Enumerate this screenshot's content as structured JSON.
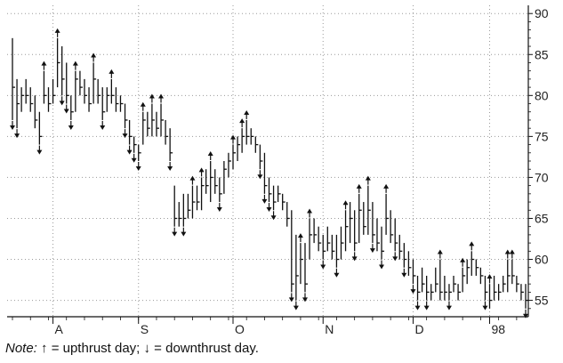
{
  "chart_data": {
    "type": "bar",
    "subtype": "OHLC price bars with thrust-day arrows",
    "title": "",
    "xlabel": "",
    "ylabel": "",
    "y_axis_position": "right",
    "ylim": [
      53,
      91
    ],
    "y_ticks": [
      55,
      60,
      65,
      70,
      75,
      80,
      85,
      90
    ],
    "x_ticks": [
      "A",
      "S",
      "O",
      "N",
      "D",
      "98"
    ],
    "grid": "dotted",
    "legend": "none",
    "bar_color": "#111111",
    "grid_color": "#9a9a9a",
    "note_label": "Note:",
    "note_text": "↑ = upthrust day; ↓ = downthrust day.",
    "bars": [
      {
        "h": 87,
        "l": 77,
        "c": 81,
        "t": "down"
      },
      {
        "h": 82,
        "l": 76,
        "c": 79,
        "t": "down"
      },
      {
        "h": 81,
        "l": 78,
        "c": 80
      },
      {
        "h": 82,
        "l": 79,
        "c": 80
      },
      {
        "h": 81,
        "l": 78,
        "c": 79
      },
      {
        "h": 80,
        "l": 76,
        "c": 77
      },
      {
        "h": 78,
        "l": 74,
        "c": 75,
        "t": "down"
      },
      {
        "h": 83,
        "l": 79,
        "c": 80,
        "t": "up"
      },
      {
        "h": 81,
        "l": 78,
        "c": 79
      },
      {
        "h": 82,
        "l": 79,
        "c": 80
      },
      {
        "h": 87,
        "l": 81,
        "c": 84,
        "t": "up"
      },
      {
        "h": 86,
        "l": 80,
        "c": 82,
        "t": "down"
      },
      {
        "h": 84,
        "l": 79,
        "c": 80,
        "t": "down"
      },
      {
        "h": 80,
        "l": 77,
        "c": 78,
        "t": "down"
      },
      {
        "h": 83,
        "l": 78,
        "c": 82,
        "t": "up"
      },
      {
        "h": 83,
        "l": 80,
        "c": 81
      },
      {
        "h": 82,
        "l": 79,
        "c": 80
      },
      {
        "h": 81,
        "l": 78,
        "c": 79
      },
      {
        "h": 84,
        "l": 79,
        "c": 82,
        "t": "up"
      },
      {
        "h": 82,
        "l": 79,
        "c": 80
      },
      {
        "h": 81,
        "l": 77,
        "c": 78,
        "t": "down"
      },
      {
        "h": 81,
        "l": 78,
        "c": 80
      },
      {
        "h": 82,
        "l": 79,
        "c": 80,
        "t": "up"
      },
      {
        "h": 81,
        "l": 78,
        "c": 79
      },
      {
        "h": 80,
        "l": 78,
        "c": 79
      },
      {
        "h": 79,
        "l": 76,
        "c": 77,
        "t": "down"
      },
      {
        "h": 77,
        "l": 74,
        "c": 75,
        "t": "down"
      },
      {
        "h": 75,
        "l": 73,
        "c": 74,
        "t": "down"
      },
      {
        "h": 74,
        "l": 72,
        "c": 73,
        "t": "down"
      },
      {
        "h": 78,
        "l": 74,
        "c": 77,
        "t": "up"
      },
      {
        "h": 78,
        "l": 75,
        "c": 76
      },
      {
        "h": 79,
        "l": 75,
        "c": 77,
        "t": "up"
      },
      {
        "h": 78,
        "l": 75,
        "c": 76
      },
      {
        "h": 79,
        "l": 75,
        "c": 77,
        "t": "up"
      },
      {
        "h": 77,
        "l": 74,
        "c": 75
      },
      {
        "h": 76,
        "l": 72,
        "c": 73,
        "t": "down"
      },
      {
        "h": 69,
        "l": 64,
        "c": 65,
        "t": "down"
      },
      {
        "h": 67,
        "l": 64,
        "c": 65
      },
      {
        "h": 68,
        "l": 64,
        "c": 65,
        "t": "down"
      },
      {
        "h": 68,
        "l": 65,
        "c": 66
      },
      {
        "h": 69,
        "l": 65,
        "c": 67,
        "t": "up"
      },
      {
        "h": 69,
        "l": 66,
        "c": 67
      },
      {
        "h": 70,
        "l": 66,
        "c": 69,
        "t": "up"
      },
      {
        "h": 71,
        "l": 68,
        "c": 69
      },
      {
        "h": 72,
        "l": 67,
        "c": 70,
        "t": "up"
      },
      {
        "h": 71,
        "l": 68,
        "c": 69
      },
      {
        "h": 70,
        "l": 67,
        "c": 68,
        "t": "down"
      },
      {
        "h": 72,
        "l": 68,
        "c": 71
      },
      {
        "h": 73,
        "l": 70,
        "c": 72
      },
      {
        "h": 74,
        "l": 71,
        "c": 73,
        "t": "up"
      },
      {
        "h": 75,
        "l": 72,
        "c": 74
      },
      {
        "h": 76,
        "l": 73,
        "c": 75,
        "t": "up"
      },
      {
        "h": 77,
        "l": 74,
        "c": 75,
        "t": "up"
      },
      {
        "h": 76,
        "l": 74,
        "c": 75
      },
      {
        "h": 75,
        "l": 73,
        "c": 74
      },
      {
        "h": 74,
        "l": 71,
        "c": 72,
        "t": "down"
      },
      {
        "h": 73,
        "l": 68,
        "c": 69,
        "t": "down"
      },
      {
        "h": 70,
        "l": 67,
        "c": 68,
        "t": "down"
      },
      {
        "h": 69,
        "l": 66,
        "c": 67,
        "t": "down"
      },
      {
        "h": 69,
        "l": 67,
        "c": 68
      },
      {
        "h": 68,
        "l": 66,
        "c": 67
      },
      {
        "h": 67,
        "l": 64,
        "c": 65
      },
      {
        "h": 66,
        "l": 56,
        "c": 57,
        "t": "down"
      },
      {
        "h": 63,
        "l": 55,
        "c": 58,
        "t": "down"
      },
      {
        "h": 62,
        "l": 57,
        "c": 60,
        "t": "up"
      },
      {
        "h": 62,
        "l": 56,
        "c": 57,
        "t": "down"
      },
      {
        "h": 65,
        "l": 60,
        "c": 63,
        "t": "up"
      },
      {
        "h": 65,
        "l": 62,
        "c": 63
      },
      {
        "h": 64,
        "l": 61,
        "c": 62
      },
      {
        "h": 63,
        "l": 60,
        "c": 61,
        "t": "down"
      },
      {
        "h": 64,
        "l": 61,
        "c": 62
      },
      {
        "h": 63,
        "l": 60,
        "c": 61
      },
      {
        "h": 63,
        "l": 59,
        "c": 60,
        "t": "down"
      },
      {
        "h": 64,
        "l": 60,
        "c": 62
      },
      {
        "h": 66,
        "l": 61,
        "c": 64,
        "t": "up"
      },
      {
        "h": 67,
        "l": 62,
        "c": 65
      },
      {
        "h": 66,
        "l": 61,
        "c": 62,
        "t": "down"
      },
      {
        "h": 68,
        "l": 62,
        "c": 66,
        "t": "up"
      },
      {
        "h": 67,
        "l": 63,
        "c": 64
      },
      {
        "h": 69,
        "l": 63,
        "c": 66,
        "t": "up"
      },
      {
        "h": 67,
        "l": 62,
        "c": 63,
        "t": "down"
      },
      {
        "h": 65,
        "l": 61,
        "c": 62
      },
      {
        "h": 64,
        "l": 60,
        "c": 61,
        "t": "down"
      },
      {
        "h": 68,
        "l": 63,
        "c": 65,
        "t": "up"
      },
      {
        "h": 66,
        "l": 62,
        "c": 63
      },
      {
        "h": 65,
        "l": 61,
        "c": 62,
        "t": "down"
      },
      {
        "h": 63,
        "l": 60,
        "c": 61
      },
      {
        "h": 62,
        "l": 59,
        "c": 60,
        "t": "down"
      },
      {
        "h": 61,
        "l": 58,
        "c": 59
      },
      {
        "h": 60,
        "l": 57,
        "c": 58,
        "t": "down"
      },
      {
        "h": 58,
        "l": 55,
        "c": 56,
        "t": "down"
      },
      {
        "h": 59,
        "l": 56,
        "c": 57
      },
      {
        "h": 58,
        "l": 55,
        "c": 56,
        "t": "down"
      },
      {
        "h": 57,
        "l": 55,
        "c": 56
      },
      {
        "h": 59,
        "l": 56,
        "c": 57
      },
      {
        "h": 60,
        "l": 55,
        "c": 56,
        "t": "up"
      },
      {
        "h": 58,
        "l": 55,
        "c": 56
      },
      {
        "h": 57,
        "l": 55,
        "c": 56,
        "t": "down"
      },
      {
        "h": 58,
        "l": 56,
        "c": 57
      },
      {
        "h": 57,
        "l": 55,
        "c": 56
      },
      {
        "h": 59,
        "l": 56,
        "c": 58,
        "t": "up"
      },
      {
        "h": 60,
        "l": 57,
        "c": 59
      },
      {
        "h": 61,
        "l": 58,
        "c": 60,
        "t": "up"
      },
      {
        "h": 60,
        "l": 58,
        "c": 59
      },
      {
        "h": 59,
        "l": 57,
        "c": 58
      },
      {
        "h": 58,
        "l": 55,
        "c": 56,
        "t": "down"
      },
      {
        "h": 57,
        "l": 54,
        "c": 55,
        "t": "up"
      },
      {
        "h": 58,
        "l": 55,
        "c": 56
      },
      {
        "h": 57,
        "l": 55,
        "c": 56
      },
      {
        "h": 58,
        "l": 56,
        "c": 57
      },
      {
        "h": 60,
        "l": 56,
        "c": 58,
        "t": "up"
      },
      {
        "h": 60,
        "l": 57,
        "c": 58,
        "t": "up"
      },
      {
        "h": 58,
        "l": 56,
        "c": 57
      },
      {
        "h": 57,
        "l": 55,
        "c": 56
      },
      {
        "h": 57,
        "l": 54,
        "c": 55,
        "t": "down"
      }
    ]
  }
}
